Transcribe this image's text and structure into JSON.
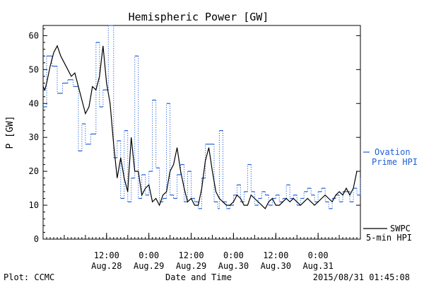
{
  "chart_data": {
    "type": "line",
    "title": "Hemispheric Power [GW]",
    "ylabel": "P [GW]",
    "xlabel": "Date and Time",
    "ylim": [
      0,
      63
    ],
    "yticks": [
      0,
      10,
      20,
      30,
      40,
      50,
      60
    ],
    "xlim_hours": [
      0,
      90
    ],
    "xticks": [
      {
        "hour": 18,
        "time": "12:00",
        "date": "Aug.28"
      },
      {
        "hour": 30,
        "time": "0:00",
        "date": "Aug.29"
      },
      {
        "hour": 42,
        "time": "12:00",
        "date": "Aug.29"
      },
      {
        "hour": 54,
        "time": "0:00",
        "date": "Aug.30"
      },
      {
        "hour": 66,
        "time": "12:00",
        "date": "Aug.30"
      },
      {
        "hour": 78,
        "time": "0:00",
        "date": "Aug.31"
      }
    ],
    "grid": false,
    "footer_left": "Plot: CCMC",
    "footer_right": "2015/08/31 01:45:08",
    "series": [
      {
        "name_lines": [
          "Ovation",
          "Prime HPI"
        ],
        "color": "#1f5fd6",
        "style": "dotted-step",
        "x": [
          0,
          1,
          2.5,
          4,
          5.5,
          7,
          8.5,
          10,
          11,
          12,
          13.5,
          15,
          16,
          17,
          18.5,
          20,
          21,
          22,
          23,
          24,
          25,
          26,
          27,
          28,
          29,
          30,
          31,
          32,
          33,
          34,
          35,
          36,
          37,
          38,
          39,
          40,
          41,
          42,
          43,
          44,
          45,
          46,
          48.5,
          49.5,
          50,
          51,
          52,
          53,
          54,
          55,
          56,
          57,
          58,
          59,
          60,
          61,
          62,
          63,
          64,
          65,
          66,
          67,
          68,
          69,
          70,
          71,
          72,
          73,
          74,
          75,
          76,
          77,
          78,
          79,
          80,
          81,
          82,
          83,
          84,
          85,
          86,
          87,
          88,
          89,
          90
        ],
        "y": [
          39,
          54,
          51,
          43,
          46,
          47,
          45,
          26,
          34,
          28,
          31,
          58,
          39,
          44,
          63,
          24,
          29,
          12,
          32,
          11,
          18,
          54,
          12,
          19,
          13,
          20,
          41,
          21,
          11,
          12,
          40,
          13,
          12,
          19,
          22,
          11,
          20,
          12,
          11,
          9,
          18,
          28,
          11,
          9,
          32,
          11,
          9,
          10,
          13,
          16,
          11,
          14,
          22,
          14,
          10,
          12,
          14,
          13,
          10,
          12,
          13,
          11,
          12,
          16,
          12,
          13,
          10,
          12,
          14,
          15,
          13,
          11,
          14,
          15,
          11,
          9,
          12,
          13,
          11,
          14,
          14,
          11,
          15,
          13,
          18
        ]
      },
      {
        "name_lines": [
          "SWPC",
          "5-min HPI"
        ],
        "color": "#000000",
        "style": "solid",
        "x": [
          0,
          0.5,
          1,
          2,
          3,
          4,
          5,
          6,
          7,
          8,
          9,
          10,
          11,
          12,
          13,
          14,
          15,
          16,
          17,
          18,
          19,
          20,
          21,
          22,
          23,
          24,
          25,
          26,
          27,
          28,
          29,
          30,
          31,
          32,
          33,
          34,
          35,
          36,
          37,
          38,
          39,
          40,
          41,
          42,
          43,
          44,
          45,
          46,
          47,
          48,
          49,
          50,
          51,
          52,
          53,
          54,
          55,
          56,
          57,
          58,
          59,
          60,
          61,
          62,
          63,
          64,
          65,
          66,
          67,
          68,
          69,
          70,
          71,
          72,
          73,
          74,
          75,
          76,
          77,
          78,
          79,
          80,
          81,
          82,
          83,
          84,
          85,
          86,
          87,
          88,
          89
        ],
        "y": [
          45,
          44,
          46,
          51,
          55,
          57,
          54,
          52,
          50,
          48,
          49,
          45,
          41,
          37,
          39,
          45,
          44,
          48,
          57,
          46,
          40,
          28,
          18,
          24,
          18,
          14,
          30,
          20,
          20,
          13,
          15,
          16,
          11,
          12,
          10,
          13,
          14,
          20,
          22,
          27,
          20,
          15,
          11,
          12,
          10,
          10,
          15,
          23,
          27,
          20,
          14,
          12,
          11,
          10,
          10,
          11,
          13,
          12,
          10,
          10,
          13,
          12,
          11,
          10,
          9,
          11,
          12,
          10,
          10,
          11,
          12,
          11,
          12,
          11,
          10,
          11,
          12,
          11,
          10,
          11,
          12,
          13,
          12,
          11,
          13,
          14,
          13,
          15,
          13,
          15,
          20
        ]
      }
    ]
  }
}
